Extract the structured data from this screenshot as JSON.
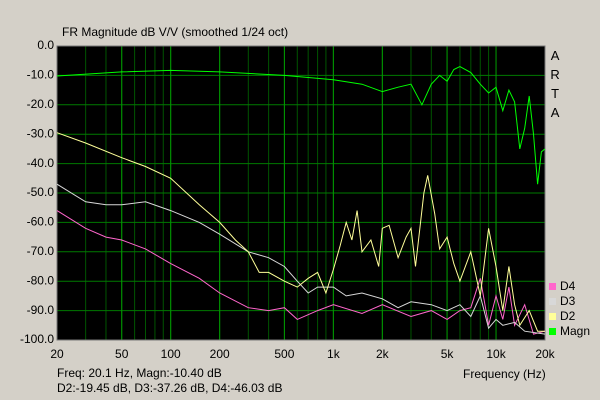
{
  "chart_data": {
    "type": "line",
    "title": "FR Magnitude dB V/V (smoothed 1/24 oct)",
    "side_label": "ARTA",
    "x_label": "Frequency (Hz)",
    "footer": [
      "Freq: 20.1 Hz, Magn:-10.40 dB",
      "D2:-19.45 dB, D3:-37.26 dB, D4:-46.03 dB"
    ],
    "xlog": true,
    "grid": true,
    "xlim": [
      20,
      20000
    ],
    "ylim": [
      -100,
      0
    ],
    "xticks": [
      20,
      50,
      100,
      200,
      500,
      {
        "value": 1000,
        "label": "1k"
      },
      {
        "value": 2000,
        "label": "2k"
      },
      {
        "value": 5000,
        "label": "5k"
      },
      {
        "value": 10000,
        "label": "10k"
      },
      {
        "value": 20000,
        "label": "20k"
      }
    ],
    "yticks": [
      {
        "value": 0,
        "label": "0.0"
      },
      {
        "value": -10,
        "label": "-10.0"
      },
      {
        "value": -20,
        "label": "-20.0"
      },
      {
        "value": -30,
        "label": "-30.0"
      },
      {
        "value": -40,
        "label": "-40.0"
      },
      {
        "value": -50,
        "label": "-50.0"
      },
      {
        "value": -60,
        "label": "-60.0"
      },
      {
        "value": -70,
        "label": "-70.0"
      },
      {
        "value": -80,
        "label": "-80.0"
      },
      {
        "value": -90,
        "label": "-90.0"
      },
      {
        "value": -100,
        "label": "-100.0"
      }
    ],
    "series": [
      {
        "name": "Magn",
        "color": "#00ff00",
        "x": [
          20,
          50,
          100,
          200,
          500,
          1000,
          1500,
          2000,
          2500,
          3000,
          3500,
          4000,
          4500,
          5000,
          5500,
          6000,
          7000,
          8000,
          9000,
          10000,
          11000,
          12000,
          13000,
          14000,
          15000,
          16000,
          17000,
          18000,
          19000,
          20000
        ],
        "values": [
          -10.2,
          -8.8,
          -8.3,
          -8.8,
          -10,
          -11.5,
          -13,
          -15.5,
          -14,
          -13,
          -20,
          -13,
          -10,
          -12,
          -8,
          -7,
          -9,
          -13,
          -16,
          -14,
          -22,
          -15,
          -19,
          -35,
          -28,
          -17,
          -30,
          -47,
          -36,
          -35
        ]
      },
      {
        "name": "D2",
        "color": "#ffff99",
        "x": [
          20,
          30,
          50,
          70,
          100,
          150,
          200,
          250,
          300,
          350,
          400,
          500,
          600,
          700,
          800,
          900,
          1000,
          1100,
          1200,
          1300,
          1400,
          1500,
          1700,
          1900,
          2000,
          2200,
          2500,
          2800,
          3000,
          3200,
          3600,
          3800,
          4200,
          4500,
          5000,
          5500,
          6000,
          7000,
          8000,
          9000,
          10000,
          11000,
          12000,
          13000,
          14000,
          16000,
          18000,
          20000
        ],
        "values": [
          -29.5,
          -33,
          -38,
          -41,
          -45,
          -54,
          -60,
          -66,
          -70,
          -77,
          -77,
          -80,
          -82,
          -79,
          -77,
          -84,
          -76,
          -68,
          -60,
          -66,
          -56,
          -70,
          -66,
          -75,
          -62,
          -61,
          -72,
          -65,
          -62,
          -75,
          -50,
          -44,
          -57,
          -69,
          -65,
          -74,
          -80,
          -70,
          -85,
          -62,
          -75,
          -90,
          -75,
          -88,
          -95,
          -90,
          -97,
          -97
        ]
      },
      {
        "name": "D3",
        "color": "#d8d8d8",
        "x": [
          20,
          30,
          40,
          50,
          70,
          100,
          150,
          200,
          300,
          400,
          500,
          600,
          700,
          800,
          1000,
          1200,
          1500,
          2000,
          2500,
          3000,
          4000,
          5000,
          6000,
          7000,
          8000,
          9000,
          10000,
          11000,
          13000,
          15000,
          20000
        ],
        "values": [
          -47,
          -53,
          -54,
          -54,
          -53,
          -56,
          -60,
          -64,
          -70,
          -72,
          -75,
          -80,
          -84,
          -82,
          -82,
          -85,
          -84,
          -86,
          -89,
          -87,
          -88,
          -90,
          -88,
          -92,
          -85,
          -96,
          -93,
          -95,
          -94,
          -97,
          -98
        ]
      },
      {
        "name": "D4",
        "color": "#ff66cc",
        "x": [
          20,
          30,
          40,
          50,
          70,
          100,
          150,
          200,
          300,
          400,
          500,
          600,
          800,
          1000,
          1500,
          2000,
          3000,
          4000,
          5000,
          6000,
          7000,
          8000,
          9000,
          10000,
          11000,
          12000,
          13000,
          15000,
          17000,
          20000
        ],
        "values": [
          -56,
          -62,
          -65,
          -66,
          -69,
          -74,
          -79,
          -84,
          -89,
          -90,
          -89,
          -93,
          -90,
          -88,
          -91,
          -88,
          -92,
          -90,
          -93,
          -90,
          -89,
          -79,
          -95,
          -85,
          -93,
          -82,
          -95,
          -88,
          -98,
          -97
        ]
      }
    ]
  }
}
